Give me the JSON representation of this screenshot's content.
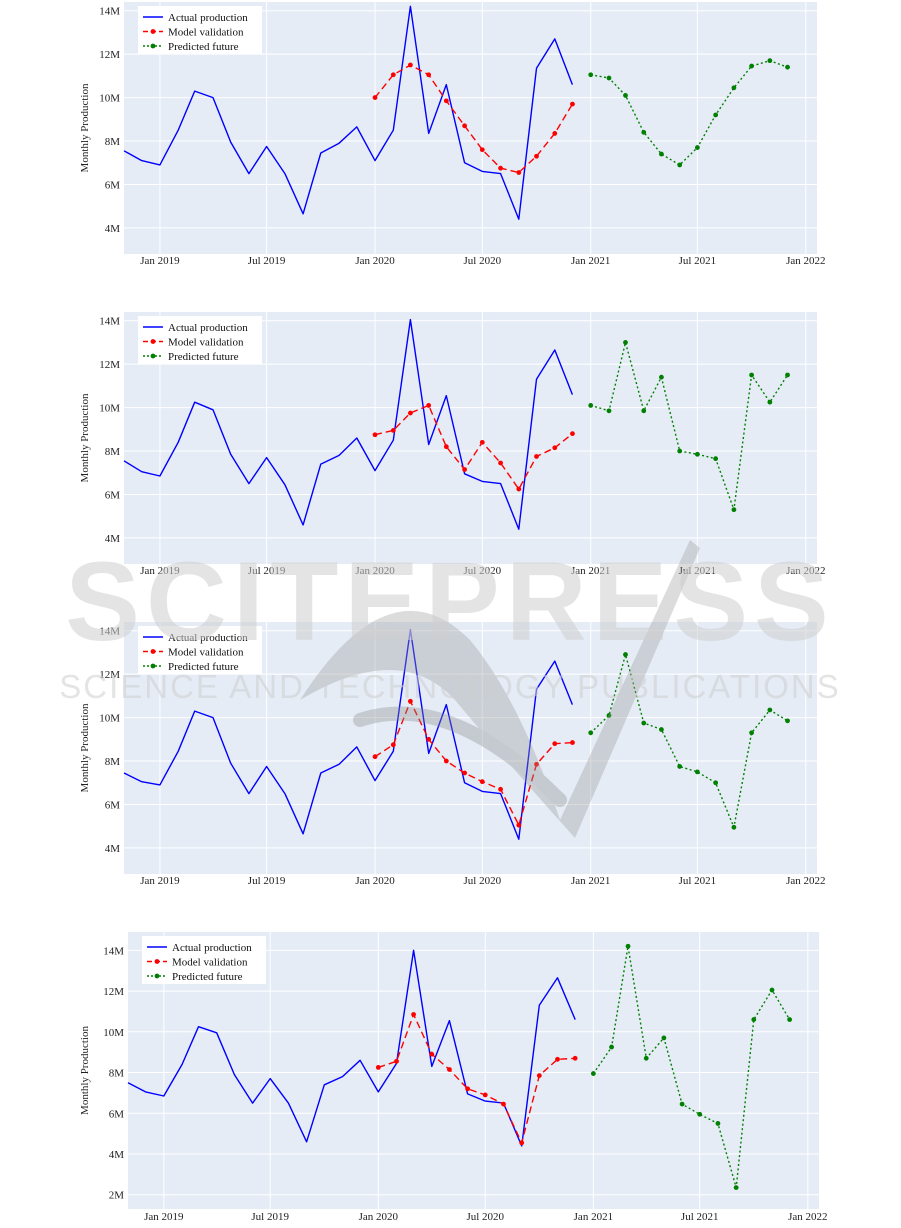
{
  "watermark": {
    "title": "SCITEPRESS",
    "subtitle": "SCIENCE AND TECHNOLOGY PUBLICATIONS"
  },
  "colors": {
    "plot_bg": "#e5ecf6",
    "grid": "#ffffff",
    "actual": "#0000ff",
    "validation": "#ff0000",
    "future": "#008000"
  },
  "chart_data": [
    {
      "type": "line",
      "ylabel": "Monthly Production",
      "ylim": [
        2.8,
        14.4
      ],
      "yticks": [
        4,
        6,
        8,
        10,
        12,
        14
      ],
      "ytick_labels": [
        "4M",
        "6M",
        "8M",
        "10M",
        "12M",
        "14M"
      ],
      "xlim": [
        "2018-11-01",
        "2022-01-20"
      ],
      "xticks": [
        "2019-01-01",
        "2019-07-01",
        "2020-01-01",
        "2020-07-01",
        "2021-01-01",
        "2021-07-01",
        "2022-01-01"
      ],
      "xtick_labels": [
        "Jan 2019",
        "Jul 2019",
        "Jan 2020",
        "Jul 2020",
        "Jan 2021",
        "Jul 2021",
        "Jan 2022"
      ],
      "legend": "top-left",
      "series": [
        {
          "name": "Actual production",
          "style": "solid",
          "x": [
            "2018-11-01",
            "2018-12-01",
            "2019-01-01",
            "2019-02-01",
            "2019-03-01",
            "2019-04-01",
            "2019-05-01",
            "2019-06-01",
            "2019-07-01",
            "2019-08-01",
            "2019-09-01",
            "2019-10-01",
            "2019-11-01",
            "2019-12-01",
            "2020-01-01",
            "2020-02-01",
            "2020-03-01",
            "2020-04-01",
            "2020-05-01",
            "2020-06-01",
            "2020-07-01",
            "2020-08-01",
            "2020-09-01",
            "2020-10-01",
            "2020-11-01",
            "2020-12-01"
          ],
          "y": [
            7.55,
            7.1,
            6.9,
            8.5,
            10.3,
            10.0,
            7.95,
            6.5,
            7.75,
            6.5,
            4.65,
            7.45,
            7.9,
            8.65,
            7.1,
            8.5,
            14.2,
            8.35,
            10.6,
            7.0,
            6.6,
            6.5,
            4.4,
            11.35,
            12.7,
            10.6
          ]
        },
        {
          "name": "Model validation",
          "style": "dashed",
          "x": [
            "2020-01-01",
            "2020-02-01",
            "2020-03-01",
            "2020-04-01",
            "2020-05-01",
            "2020-06-01",
            "2020-07-01",
            "2020-08-01",
            "2020-09-01",
            "2020-10-01",
            "2020-11-01",
            "2020-12-01"
          ],
          "y": [
            10.0,
            11.05,
            11.5,
            11.05,
            9.85,
            8.7,
            7.6,
            6.75,
            6.55,
            7.3,
            8.35,
            9.7
          ]
        },
        {
          "name": "Predicted future",
          "style": "dotted",
          "x": [
            "2021-01-01",
            "2021-02-01",
            "2021-03-01",
            "2021-04-01",
            "2021-05-01",
            "2021-06-01",
            "2021-07-01",
            "2021-08-01",
            "2021-09-01",
            "2021-10-01",
            "2021-11-01",
            "2021-12-01"
          ],
          "y": [
            11.05,
            10.9,
            10.1,
            8.4,
            7.4,
            6.9,
            7.7,
            9.2,
            10.45,
            11.45,
            11.7,
            11.4
          ]
        }
      ]
    },
    {
      "type": "line",
      "ylabel": "Monthly Production",
      "ylim": [
        2.8,
        14.4
      ],
      "yticks": [
        4,
        6,
        8,
        10,
        12,
        14
      ],
      "ytick_labels": [
        "4M",
        "6M",
        "8M",
        "10M",
        "12M",
        "14M"
      ],
      "xlim": [
        "2018-11-01",
        "2022-01-20"
      ],
      "xticks": [
        "2019-01-01",
        "2019-07-01",
        "2020-01-01",
        "2020-07-01",
        "2021-01-01",
        "2021-07-01",
        "2022-01-01"
      ],
      "xtick_labels": [
        "Jan 2019",
        "Jul 2019",
        "Jan 2020",
        "Jul 2020",
        "Jan 2021",
        "Jul 2021",
        "Jan 2022"
      ],
      "legend": "top-left",
      "series": [
        {
          "name": "Actual production",
          "style": "solid",
          "x": [
            "2018-11-01",
            "2018-12-01",
            "2019-01-01",
            "2019-02-01",
            "2019-03-01",
            "2019-04-01",
            "2019-05-01",
            "2019-06-01",
            "2019-07-01",
            "2019-08-01",
            "2019-09-01",
            "2019-10-01",
            "2019-11-01",
            "2019-12-01",
            "2020-01-01",
            "2020-02-01",
            "2020-03-01",
            "2020-04-01",
            "2020-05-01",
            "2020-06-01",
            "2020-07-01",
            "2020-08-01",
            "2020-09-01",
            "2020-10-01",
            "2020-11-01",
            "2020-12-01"
          ],
          "y": [
            7.55,
            7.05,
            6.85,
            8.4,
            10.25,
            9.9,
            7.85,
            6.5,
            7.7,
            6.45,
            4.6,
            7.4,
            7.8,
            8.6,
            7.1,
            8.5,
            14.05,
            8.3,
            10.55,
            6.95,
            6.6,
            6.5,
            4.4,
            11.3,
            12.65,
            10.6
          ]
        },
        {
          "name": "Model validation",
          "style": "dashed",
          "x": [
            "2020-01-01",
            "2020-02-01",
            "2020-03-01",
            "2020-04-01",
            "2020-05-01",
            "2020-06-01",
            "2020-07-01",
            "2020-08-01",
            "2020-09-01",
            "2020-10-01",
            "2020-11-01",
            "2020-12-01"
          ],
          "y": [
            8.75,
            8.95,
            9.75,
            10.1,
            8.2,
            7.15,
            8.4,
            7.45,
            6.25,
            7.75,
            8.15,
            8.8
          ]
        },
        {
          "name": "Predicted future",
          "style": "dotted",
          "x": [
            "2021-01-01",
            "2021-02-01",
            "2021-03-01",
            "2021-04-01",
            "2021-05-01",
            "2021-06-01",
            "2021-07-01",
            "2021-08-01",
            "2021-09-01",
            "2021-10-01",
            "2021-11-01",
            "2021-12-01"
          ],
          "y": [
            10.1,
            9.85,
            13.0,
            9.85,
            11.4,
            8.0,
            7.85,
            7.65,
            5.3,
            11.5,
            10.25,
            11.5
          ]
        }
      ]
    },
    {
      "type": "line",
      "ylabel": "Monthly Production",
      "ylim": [
        2.8,
        14.4
      ],
      "yticks": [
        4,
        6,
        8,
        10,
        12,
        14
      ],
      "ytick_labels": [
        "4M",
        "6M",
        "8M",
        "10M",
        "12M",
        "14M"
      ],
      "xlim": [
        "2018-11-01",
        "2022-01-20"
      ],
      "xticks": [
        "2019-01-01",
        "2019-07-01",
        "2020-01-01",
        "2020-07-01",
        "2021-01-01",
        "2021-07-01",
        "2022-01-01"
      ],
      "xtick_labels": [
        "Jan 2019",
        "Jul 2019",
        "Jan 2020",
        "Jul 2020",
        "Jan 2021",
        "Jul 2021",
        "Jan 2022"
      ],
      "legend": "top-left",
      "series": [
        {
          "name": "Actual production",
          "style": "solid",
          "x": [
            "2018-11-01",
            "2018-12-01",
            "2019-01-01",
            "2019-02-01",
            "2019-03-01",
            "2019-04-01",
            "2019-05-01",
            "2019-06-01",
            "2019-07-01",
            "2019-08-01",
            "2019-09-01",
            "2019-10-01",
            "2019-11-01",
            "2019-12-01",
            "2020-01-01",
            "2020-02-01",
            "2020-03-01",
            "2020-04-01",
            "2020-05-01",
            "2020-06-01",
            "2020-07-01",
            "2020-08-01",
            "2020-09-01",
            "2020-10-01",
            "2020-11-01",
            "2020-12-01"
          ],
          "y": [
            7.45,
            7.05,
            6.9,
            8.45,
            10.3,
            10.0,
            7.9,
            6.5,
            7.75,
            6.5,
            4.65,
            7.45,
            7.85,
            8.65,
            7.1,
            8.45,
            14.05,
            8.35,
            10.6,
            7.0,
            6.6,
            6.5,
            4.4,
            11.3,
            12.6,
            10.6
          ]
        },
        {
          "name": "Model validation",
          "style": "dashed",
          "x": [
            "2020-01-01",
            "2020-02-01",
            "2020-03-01",
            "2020-04-01",
            "2020-05-01",
            "2020-06-01",
            "2020-07-01",
            "2020-08-01",
            "2020-09-01",
            "2020-10-01",
            "2020-11-01",
            "2020-12-01"
          ],
          "y": [
            8.2,
            8.75,
            10.75,
            9.0,
            8.0,
            7.45,
            7.05,
            6.7,
            5.05,
            7.85,
            8.8,
            8.85
          ]
        },
        {
          "name": "Predicted future",
          "style": "dotted",
          "x": [
            "2021-01-01",
            "2021-02-01",
            "2021-03-01",
            "2021-04-01",
            "2021-05-01",
            "2021-06-01",
            "2021-07-01",
            "2021-08-01",
            "2021-09-01",
            "2021-10-01",
            "2021-11-01",
            "2021-12-01"
          ],
          "y": [
            9.3,
            10.1,
            12.9,
            9.75,
            9.45,
            7.75,
            7.5,
            7.0,
            4.95,
            9.3,
            10.35,
            9.85
          ]
        }
      ]
    },
    {
      "type": "line",
      "ylabel": "Monthly Production",
      "ylim": [
        1.3,
        14.9
      ],
      "yticks": [
        2,
        4,
        6,
        8,
        10,
        12,
        14
      ],
      "ytick_labels": [
        "2M",
        "4M",
        "6M",
        "8M",
        "10M",
        "12M",
        "14M"
      ],
      "xlim": [
        "2018-11-01",
        "2022-01-20"
      ],
      "xticks": [
        "2019-01-01",
        "2019-07-01",
        "2020-01-01",
        "2020-07-01",
        "2021-01-01",
        "2021-07-01",
        "2022-01-01"
      ],
      "xtick_labels": [
        "Jan 2019",
        "Jul 2019",
        "Jan 2020",
        "Jul 2020",
        "Jan 2021",
        "Jul 2021",
        "Jan 2022"
      ],
      "legend": "top-left",
      "series": [
        {
          "name": "Actual production",
          "style": "solid",
          "x": [
            "2018-11-01",
            "2018-12-01",
            "2019-01-01",
            "2019-02-01",
            "2019-03-01",
            "2019-04-01",
            "2019-05-01",
            "2019-06-01",
            "2019-07-01",
            "2019-08-01",
            "2019-09-01",
            "2019-10-01",
            "2019-11-01",
            "2019-12-01",
            "2020-01-01",
            "2020-02-01",
            "2020-03-01",
            "2020-04-01",
            "2020-05-01",
            "2020-06-01",
            "2020-07-01",
            "2020-08-01",
            "2020-09-01",
            "2020-10-01",
            "2020-11-01",
            "2020-12-01"
          ],
          "y": [
            7.5,
            7.05,
            6.85,
            8.4,
            10.25,
            9.95,
            7.9,
            6.5,
            7.7,
            6.5,
            4.6,
            7.4,
            7.8,
            8.6,
            7.05,
            8.45,
            14.0,
            8.3,
            10.55,
            6.95,
            6.6,
            6.5,
            4.4,
            11.3,
            12.65,
            10.6
          ]
        },
        {
          "name": "Model validation",
          "style": "dashed",
          "x": [
            "2020-01-01",
            "2020-02-01",
            "2020-03-01",
            "2020-04-01",
            "2020-05-01",
            "2020-06-01",
            "2020-07-01",
            "2020-08-01",
            "2020-09-01",
            "2020-10-01",
            "2020-11-01",
            "2020-12-01"
          ],
          "y": [
            8.25,
            8.55,
            10.85,
            8.9,
            8.15,
            7.2,
            6.9,
            6.45,
            4.55,
            7.85,
            8.65,
            8.7
          ]
        },
        {
          "name": "Predicted future",
          "style": "dotted",
          "x": [
            "2021-01-01",
            "2021-02-01",
            "2021-03-01",
            "2021-04-01",
            "2021-05-01",
            "2021-06-01",
            "2021-07-01",
            "2021-08-01",
            "2021-09-01",
            "2021-10-01",
            "2021-11-01",
            "2021-12-01"
          ],
          "y": [
            7.95,
            9.25,
            14.2,
            8.7,
            9.7,
            6.45,
            5.95,
            5.5,
            2.35,
            10.6,
            12.05,
            10.6
          ]
        }
      ]
    }
  ]
}
